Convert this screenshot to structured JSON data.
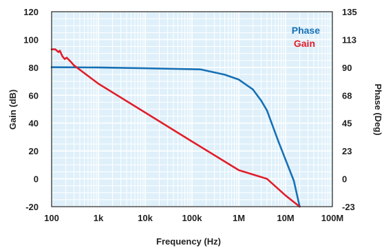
{
  "chart_data": {
    "type": "line",
    "xlabel": "Frequency (Hz)",
    "ylabel_left": "Gain (dB)",
    "ylabel_right": "Phase (Deg)",
    "x_scale": "log",
    "xlim": [
      100,
      100000000
    ],
    "x_ticks": [
      {
        "value": 100,
        "label": "100"
      },
      {
        "value": 1000,
        "label": "1k"
      },
      {
        "value": 10000,
        "label": "10k"
      },
      {
        "value": 100000,
        "label": "100k"
      },
      {
        "value": 1000000,
        "label": "1M"
      },
      {
        "value": 10000000,
        "label": "10M"
      },
      {
        "value": 100000000,
        "label": "100M"
      }
    ],
    "ylim_left": [
      -20,
      120
    ],
    "y_ticks_left": [
      "-20",
      "0",
      "20",
      "40",
      "60",
      "80",
      "100",
      "120"
    ],
    "ylim_right": [
      -23,
      135
    ],
    "y_ticks_right": [
      "-23",
      "0",
      "23",
      "45",
      "68",
      "90",
      "113",
      "135"
    ],
    "grid": true,
    "legend_position": "top-right",
    "colors": {
      "background": "#dff0fa",
      "grid": "#ffffff",
      "phase": "#1670b5",
      "gain": "#e01e2a",
      "border": "#222222"
    },
    "series": [
      {
        "name": "Phase",
        "axis": "right",
        "color": "#1670b5",
        "x": [
          100,
          1000,
          10000,
          150000,
          500000,
          1000000,
          2000000,
          3000000,
          4000000,
          5000000,
          7000000,
          10000000,
          15000000,
          20000000
        ],
        "y": [
          90,
          89.8,
          89.2,
          88.3,
          84,
          80,
          72,
          63,
          55,
          45,
          30,
          15,
          -2,
          -23
        ]
      },
      {
        "name": "Gain",
        "axis": "left",
        "color": "#e01e2a",
        "x": [
          100,
          120,
          140,
          150,
          170,
          190,
          210,
          250,
          300,
          1000,
          10000,
          100000,
          1000000,
          4000000,
          10000000,
          20000000
        ],
        "y": [
          93,
          93,
          91,
          92,
          88,
          86,
          87,
          84.5,
          81.5,
          68.3,
          47.6,
          26.8,
          6.2,
          0,
          -12,
          -20
        ]
      }
    ]
  }
}
